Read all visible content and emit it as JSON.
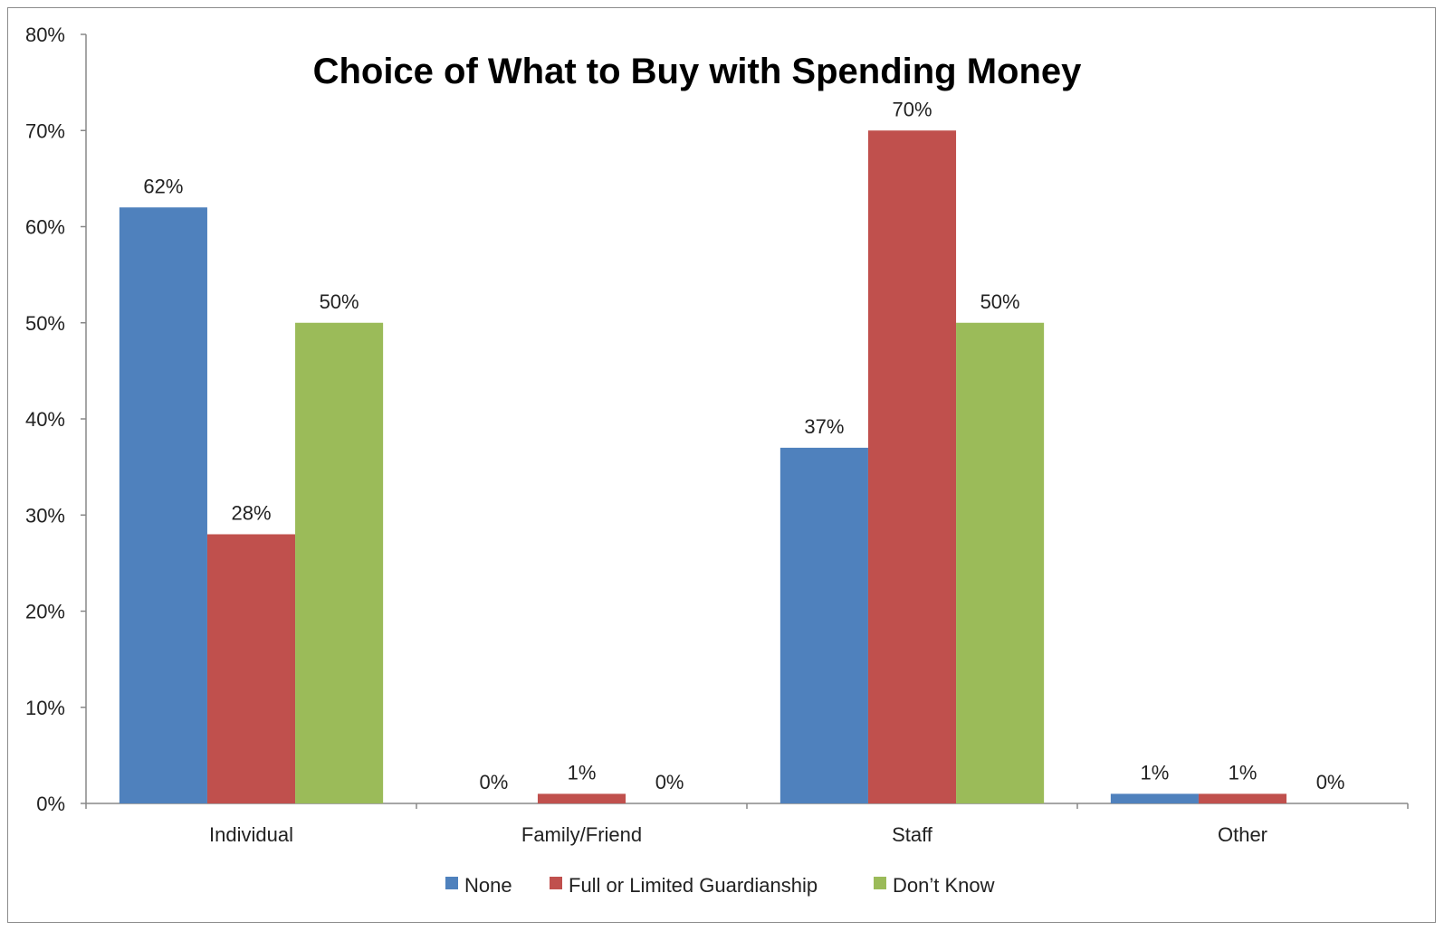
{
  "chart_data": {
    "type": "bar",
    "title": "Choice of What to Buy with Spending Money",
    "xlabel": "",
    "ylabel": "",
    "ylim": [
      0,
      80
    ],
    "yticks": [
      "0%",
      "10%",
      "20%",
      "30%",
      "40%",
      "50%",
      "60%",
      "70%",
      "80%"
    ],
    "grid": false,
    "legend_position": "bottom",
    "categories": [
      "Individual",
      "Family/Friend",
      "Staff",
      "Other"
    ],
    "series": [
      {
        "name": "None",
        "color": "#4f81bd",
        "values": [
          62,
          0,
          37,
          1
        ],
        "labels": [
          "62%",
          "0%",
          "37%",
          "1%"
        ]
      },
      {
        "name": "Full or Limited Guardianship",
        "color": "#c0504d",
        "values": [
          28,
          1,
          70,
          1
        ],
        "labels": [
          "28%",
          "1%",
          "70%",
          "1%"
        ]
      },
      {
        "name": "Don’t Know",
        "color": "#9bbb59",
        "values": [
          50,
          0,
          50,
          0
        ],
        "labels": [
          "50%",
          "0%",
          "50%",
          "0%"
        ]
      }
    ]
  }
}
